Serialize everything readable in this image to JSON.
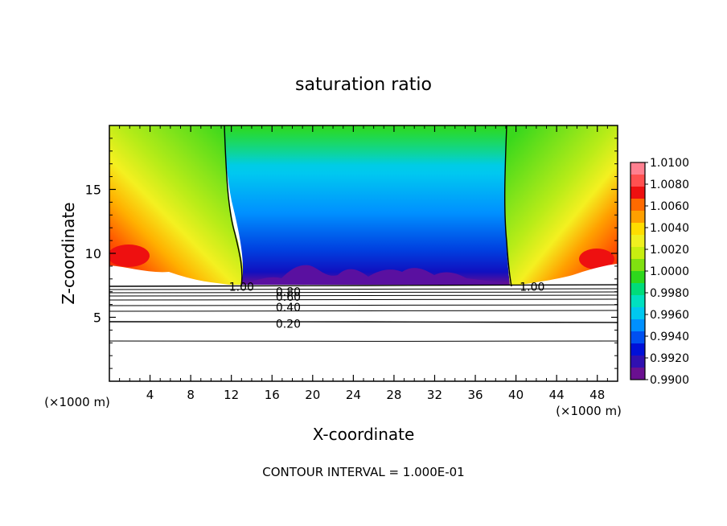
{
  "chart_data": {
    "type": "heatmap",
    "title": "saturation ratio",
    "xlabel": "X-coordinate",
    "ylabel": "Z-coordinate",
    "x_unit_left": "(×1000 m)",
    "x_unit_right": "(×1000 m)",
    "xlim": [
      0,
      50
    ],
    "ylim": [
      0,
      20
    ],
    "x_ticks": [
      4,
      8,
      12,
      16,
      20,
      24,
      28,
      32,
      36,
      40,
      44,
      48
    ],
    "x_tick_labels": [
      "4",
      "8",
      "12",
      "16",
      "20",
      "24",
      "28",
      "32",
      "36",
      "40",
      "44",
      "48"
    ],
    "y_ticks": [
      5,
      10,
      15
    ],
    "y_tick_labels": [
      "5",
      "10",
      "15"
    ],
    "colorbar": {
      "labels": [
        "1.0100",
        "1.0080",
        "1.0060",
        "1.0040",
        "1.0020",
        "1.0000",
        "0.9980",
        "0.9960",
        "0.9940",
        "0.9920",
        "0.9900"
      ],
      "colors": [
        "#ff8090",
        "#ff5050",
        "#ee1010",
        "#ff6a00",
        "#ffa000",
        "#ffdd00",
        "#f0f020",
        "#c8ee10",
        "#80e010",
        "#2ed81c",
        "#00dc7a",
        "#00e0c0",
        "#00c8f0",
        "#0090ff",
        "#0050f0",
        "#0010d8",
        "#3010b0",
        "#6a1090"
      ]
    },
    "contour_labels": [
      {
        "text": "1.00",
        "x": 13.0,
        "z": 7.4
      },
      {
        "text": "1.00",
        "x": 41.6,
        "z": 7.4
      },
      {
        "text": "0.80",
        "x": 17.6,
        "z": 7.0
      },
      {
        "text": "0.60",
        "x": 17.6,
        "z": 6.6
      },
      {
        "text": "0.40",
        "x": 17.6,
        "z": 5.8
      },
      {
        "text": "0.20",
        "x": 17.6,
        "z": 4.5
      }
    ],
    "contour_interval_label": "CONTOUR INTERVAL = 1.000E-01"
  }
}
